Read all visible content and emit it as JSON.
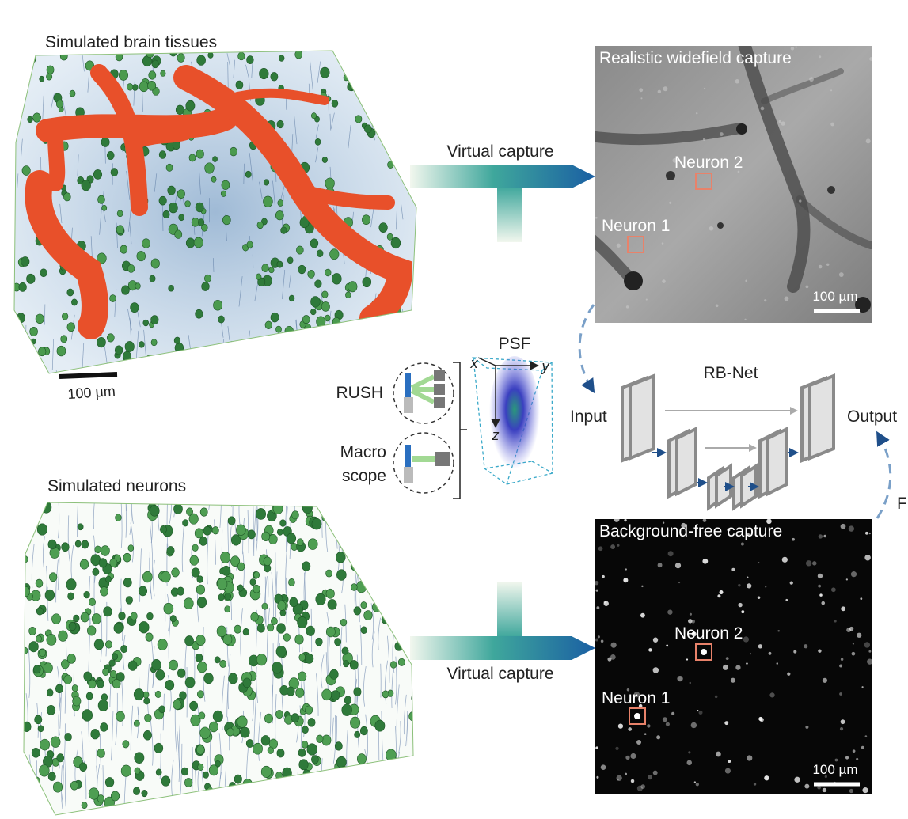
{
  "top_left": {
    "title": "Simulated brain tissues",
    "scale_bar": "100 µm"
  },
  "top_arrow": {
    "label": "Virtual capture"
  },
  "widefield": {
    "title": "Realistic widefield capture",
    "neuron_2": "Neuron 2",
    "neuron_1": "Neuron 1",
    "scale_bar": "100 µm"
  },
  "psf": {
    "title": "PSF",
    "axes": [
      "x",
      "y",
      "z"
    ]
  },
  "systems": {
    "rush": "RUSH",
    "macroscope": [
      "Macro",
      "scope"
    ]
  },
  "network": {
    "title": "RB-Net",
    "input": "Input",
    "output": "Output",
    "cut_label": "F"
  },
  "bottom_left": {
    "title": "Simulated neurons"
  },
  "bottom_arrow": {
    "label": "Virtual capture"
  },
  "background_free": {
    "title": "Background-free capture",
    "neuron_2": "Neuron 2",
    "neuron_1": "Neuron 1",
    "scale_bar": "100 µm"
  }
}
